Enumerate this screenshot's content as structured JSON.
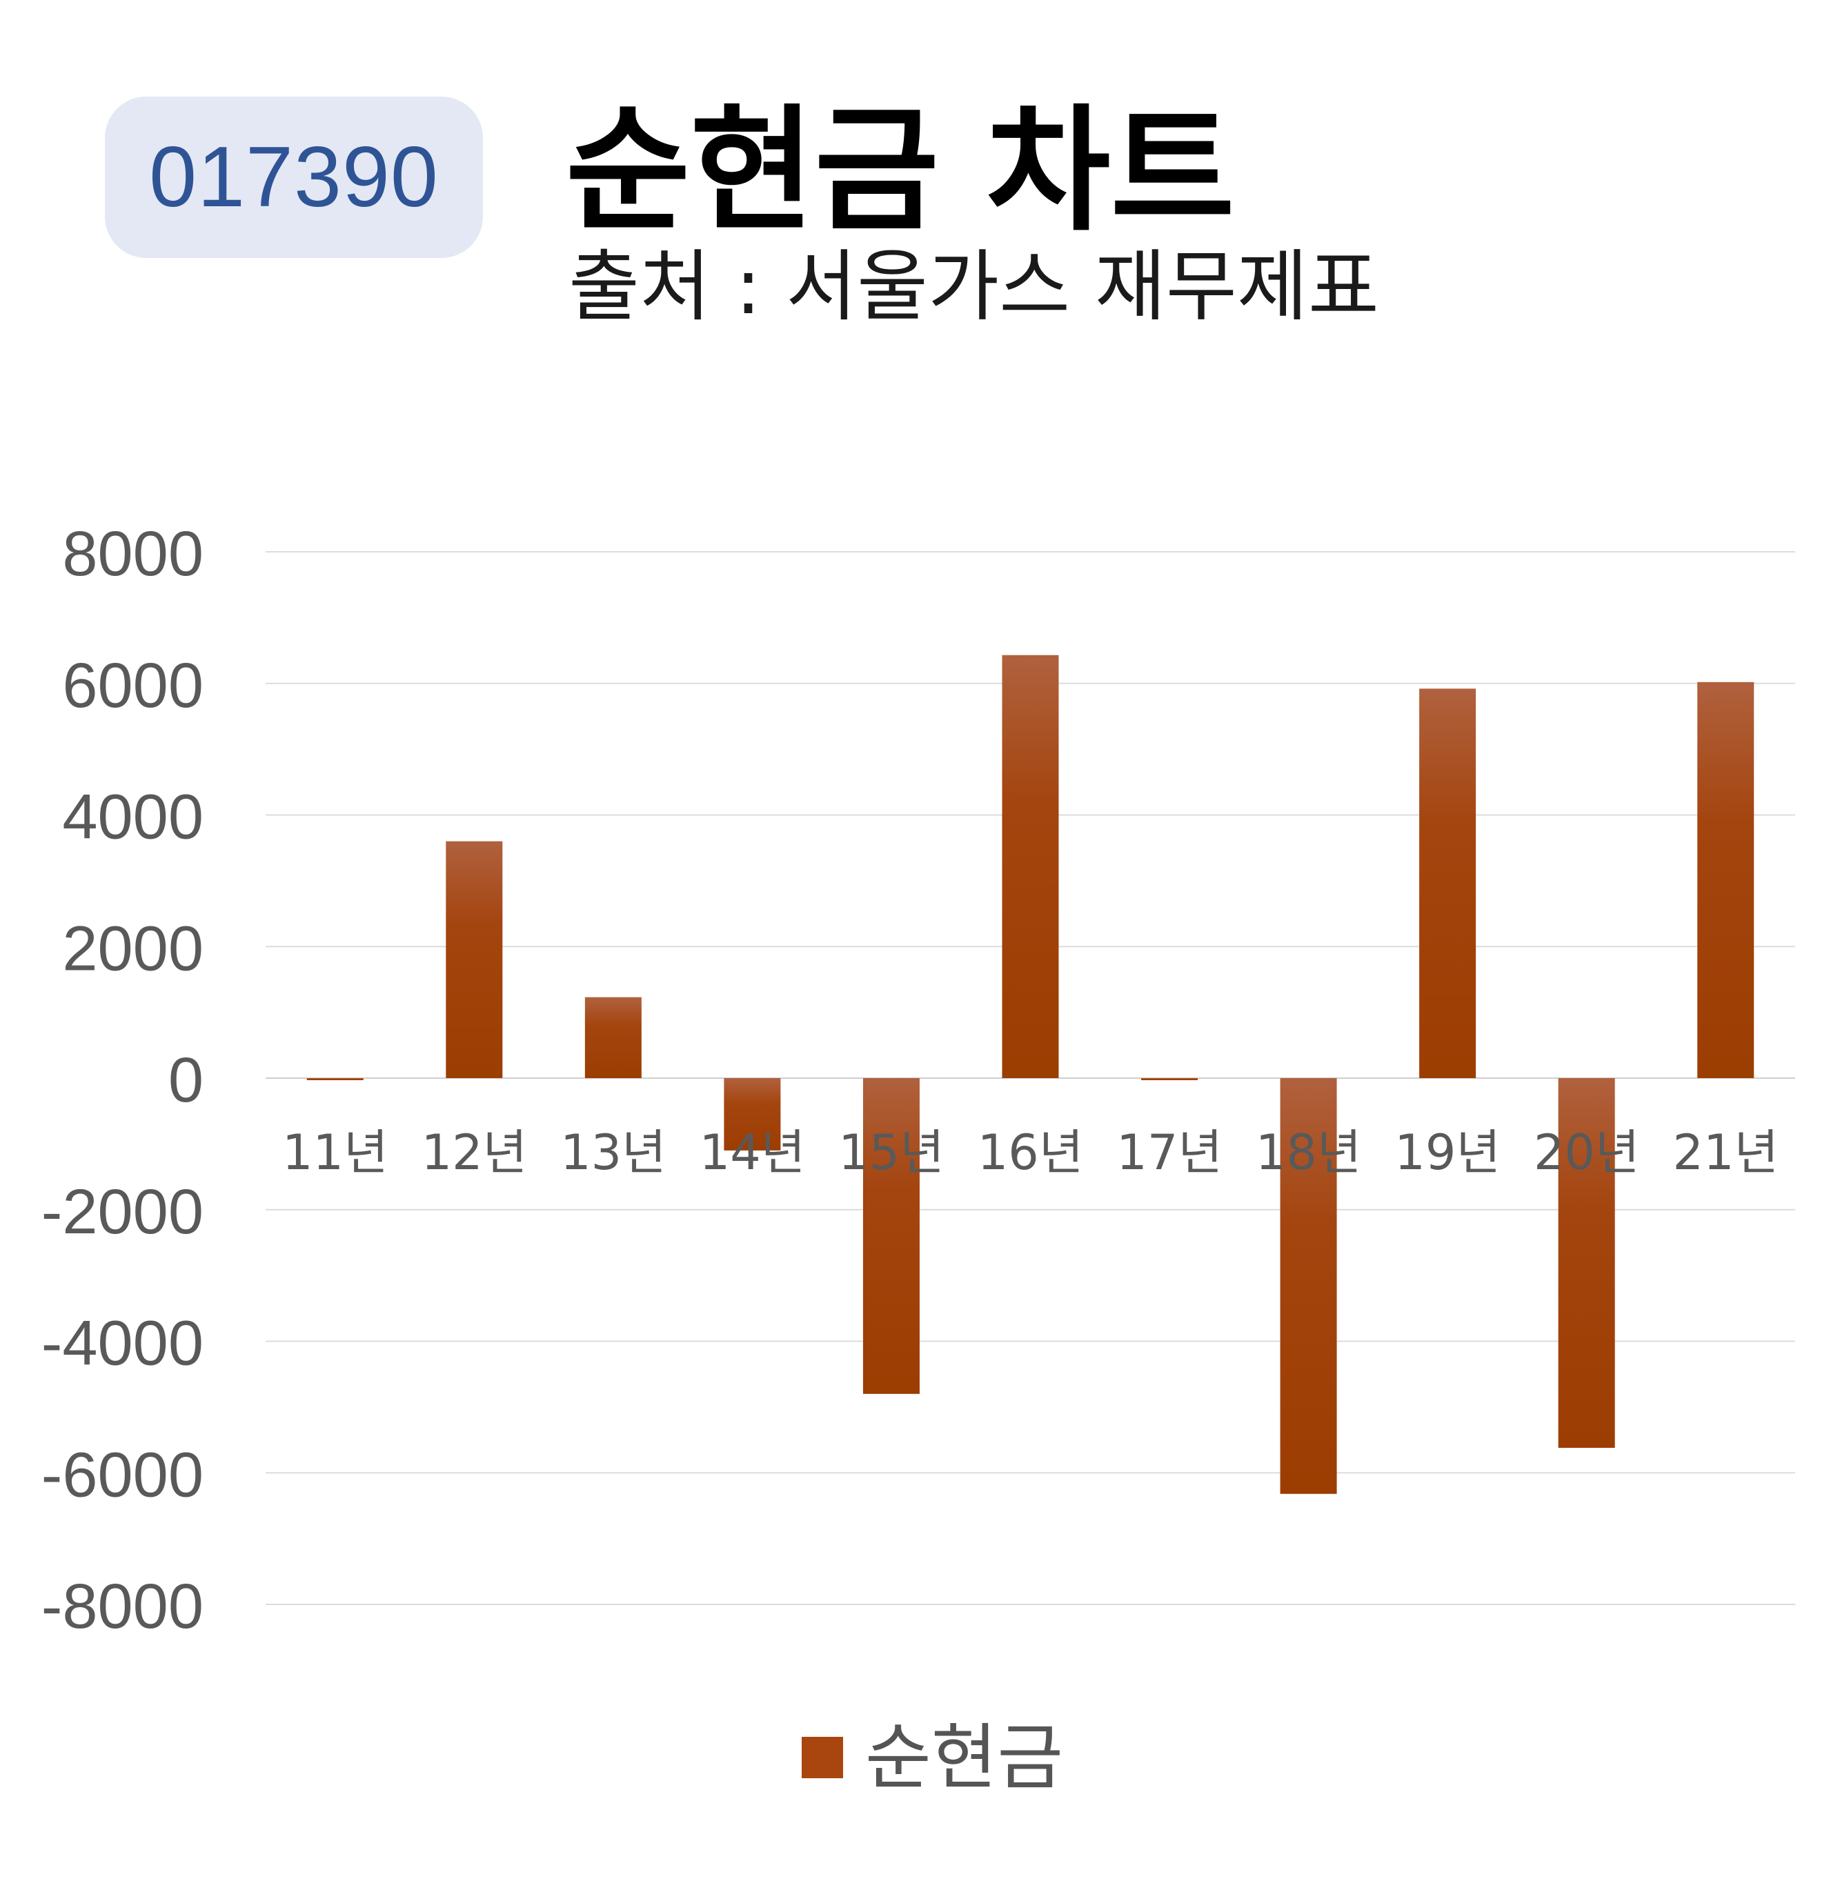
{
  "badge": {
    "ticker": "017390"
  },
  "header": {
    "title": "순현금 차트",
    "subtitle": "출처 : 서울가스 재무제표"
  },
  "colors": {
    "bar": "#a9450e",
    "bar_top": "#b0613e",
    "badge_bg": "#e3e8f4",
    "badge_text": "#2f5496"
  },
  "legend": {
    "label": "순현금",
    "position": "bottom"
  },
  "chart_data": {
    "type": "bar",
    "categories": [
      "11년",
      "12년",
      "13년",
      "14년",
      "15년",
      "16년",
      "17년",
      "18년",
      "19년",
      "20년",
      "21년"
    ],
    "series": [
      {
        "name": "순현금",
        "values": [
          0,
          3600,
          1230,
          -1100,
          -4800,
          6430,
          -30,
          -6320,
          5920,
          -5620,
          6020
        ]
      }
    ],
    "ylim": [
      -8000,
      8000
    ],
    "yticks": [
      "8000",
      "6000",
      "4000",
      "2000",
      "0",
      "-2000",
      "-4000",
      "-6000",
      "-8000"
    ],
    "grid": true
  }
}
